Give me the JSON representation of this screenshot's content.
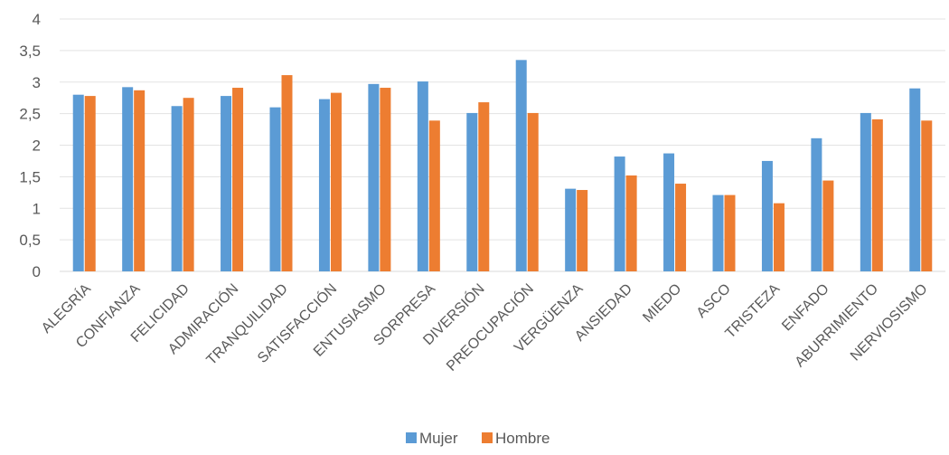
{
  "chart_data": {
    "type": "bar",
    "title": "",
    "xlabel": "",
    "ylabel": "",
    "ylim": [
      0,
      4
    ],
    "yticks": [
      "0",
      "0,5",
      "1",
      "1,5",
      "2",
      "2,5",
      "3",
      "3,5",
      "4"
    ],
    "grid": true,
    "legend_position": "bottom",
    "categories": [
      "ALEGRÍA",
      "CONFIANZA",
      "FELICIDAD",
      "ADMIRACIÓN",
      "TRANQUILIDAD",
      "SATISFACCIÓN",
      "ENTUSIASMO",
      "SORPRESA",
      "DIVERSIÓN",
      "PREOCUPACIÓN",
      "VERGÜENZA",
      "ANSIEDAD",
      "MIEDO",
      "ASCO",
      "TRISTEZA",
      "ENFADO",
      "ABURRIMIENTO",
      "NERVIOSISMO"
    ],
    "series": [
      {
        "name": "Mujer",
        "color": "#5B9BD5",
        "values": [
          2.8,
          2.92,
          2.62,
          2.78,
          2.6,
          2.73,
          2.97,
          3.01,
          2.51,
          3.35,
          1.31,
          1.82,
          1.87,
          1.21,
          1.75,
          2.11,
          2.51,
          2.9
        ]
      },
      {
        "name": "Hombre",
        "color": "#ED7D31",
        "values": [
          2.78,
          2.87,
          2.75,
          2.91,
          3.11,
          2.83,
          2.91,
          2.39,
          2.68,
          2.51,
          1.29,
          1.52,
          1.39,
          1.21,
          1.08,
          1.44,
          2.41,
          2.39
        ]
      }
    ]
  }
}
